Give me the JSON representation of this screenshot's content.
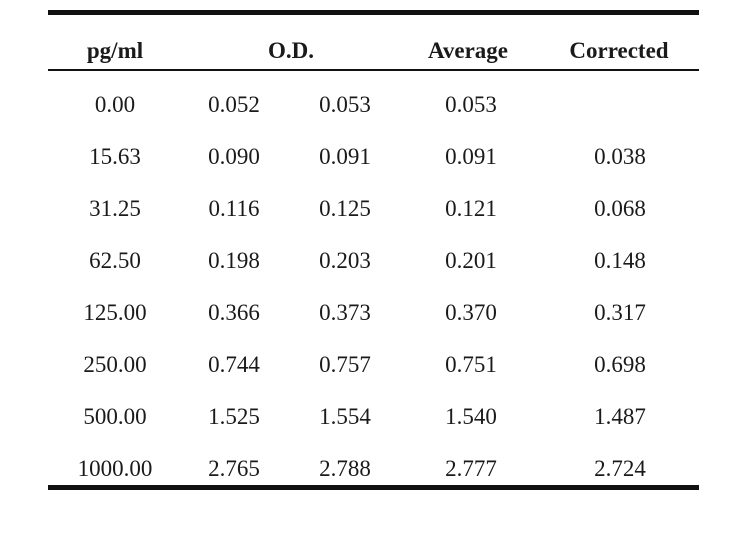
{
  "table": {
    "headers": {
      "conc": "pg/ml",
      "od": "O.D.",
      "average": "Average",
      "corrected": "Corrected"
    },
    "rows": [
      {
        "conc": "0.00",
        "od1": "0.052",
        "od2": "0.053",
        "avg": "0.053",
        "corr": ""
      },
      {
        "conc": "15.63",
        "od1": "0.090",
        "od2": "0.091",
        "avg": "0.091",
        "corr": "0.038"
      },
      {
        "conc": "31.25",
        "od1": "0.116",
        "od2": "0.125",
        "avg": "0.121",
        "corr": "0.068"
      },
      {
        "conc": "62.50",
        "od1": "0.198",
        "od2": "0.203",
        "avg": "0.201",
        "corr": "0.148"
      },
      {
        "conc": "125.00",
        "od1": "0.366",
        "od2": "0.373",
        "avg": "0.370",
        "corr": "0.317"
      },
      {
        "conc": "250.00",
        "od1": "0.744",
        "od2": "0.757",
        "avg": "0.751",
        "corr": "0.698"
      },
      {
        "conc": "500.00",
        "od1": "1.525",
        "od2": "1.554",
        "avg": "1.540",
        "corr": "1.487"
      },
      {
        "conc": "1000.00",
        "od1": "2.765",
        "od2": "2.788",
        "avg": "2.777",
        "corr": "2.724"
      }
    ]
  }
}
